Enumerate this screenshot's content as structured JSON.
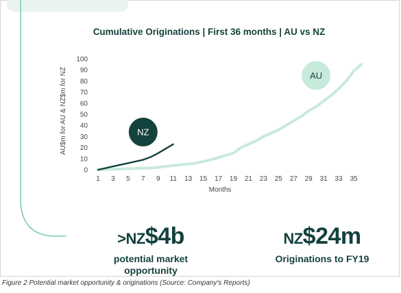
{
  "chart_data": {
    "type": "line",
    "title": "Cumulative Originations | First 36 months | AU vs NZ",
    "xlabel": "Months",
    "ylabel": "AU$m for AU & NZ$m for NZ",
    "xlim": [
      1,
      36
    ],
    "ylim": [
      0,
      100
    ],
    "x_ticks": [
      1,
      3,
      5,
      7,
      9,
      11,
      13,
      15,
      17,
      19,
      21,
      23,
      25,
      27,
      29,
      31,
      33,
      35
    ],
    "y_ticks": [
      0,
      10,
      20,
      30,
      40,
      50,
      60,
      70,
      80,
      90,
      100
    ],
    "grid": false,
    "series": [
      {
        "name": "NZ",
        "color": "#14423d",
        "x": [
          1,
          2,
          3,
          4,
          5,
          6,
          7,
          8,
          9,
          10,
          11
        ],
        "y": [
          0,
          1.5,
          3,
          4.5,
          6,
          7.5,
          9,
          11.5,
          15,
          19,
          23
        ]
      },
      {
        "name": "AU",
        "color": "#c8eadb",
        "x": [
          1,
          2,
          3,
          4,
          5,
          6,
          7,
          8,
          9,
          10,
          11,
          12,
          13,
          14,
          15,
          16,
          17,
          18,
          19,
          20,
          21,
          22,
          23,
          24,
          25,
          26,
          27,
          28,
          29,
          30,
          31,
          32,
          33,
          34,
          35,
          36
        ],
        "y": [
          0,
          0.3,
          0.5,
          0.7,
          1,
          1.2,
          1.4,
          1.6,
          2.2,
          3,
          3.8,
          4.5,
          5.2,
          6,
          7.5,
          9,
          11,
          13,
          15,
          20,
          23,
          26,
          30,
          33,
          36,
          40,
          44,
          48,
          53,
          57,
          62,
          67,
          73,
          80,
          89,
          95
        ]
      }
    ]
  },
  "stats": {
    "market": {
      "prefix": ">NZ",
      "value": "$4b",
      "caption_line1": "potential market",
      "caption_line2": "opportunity"
    },
    "originations": {
      "prefix": "NZ",
      "value": "$24m",
      "caption": "Originations to FY19"
    }
  },
  "figure_caption": "Figure 2 Potential market opportunity & originations (Source: Company's Reports)",
  "colors": {
    "dark_green": "#14423d",
    "light_green": "#c8eadb",
    "accent_line": "#7ccfae",
    "tab": "#eaf3ef"
  }
}
